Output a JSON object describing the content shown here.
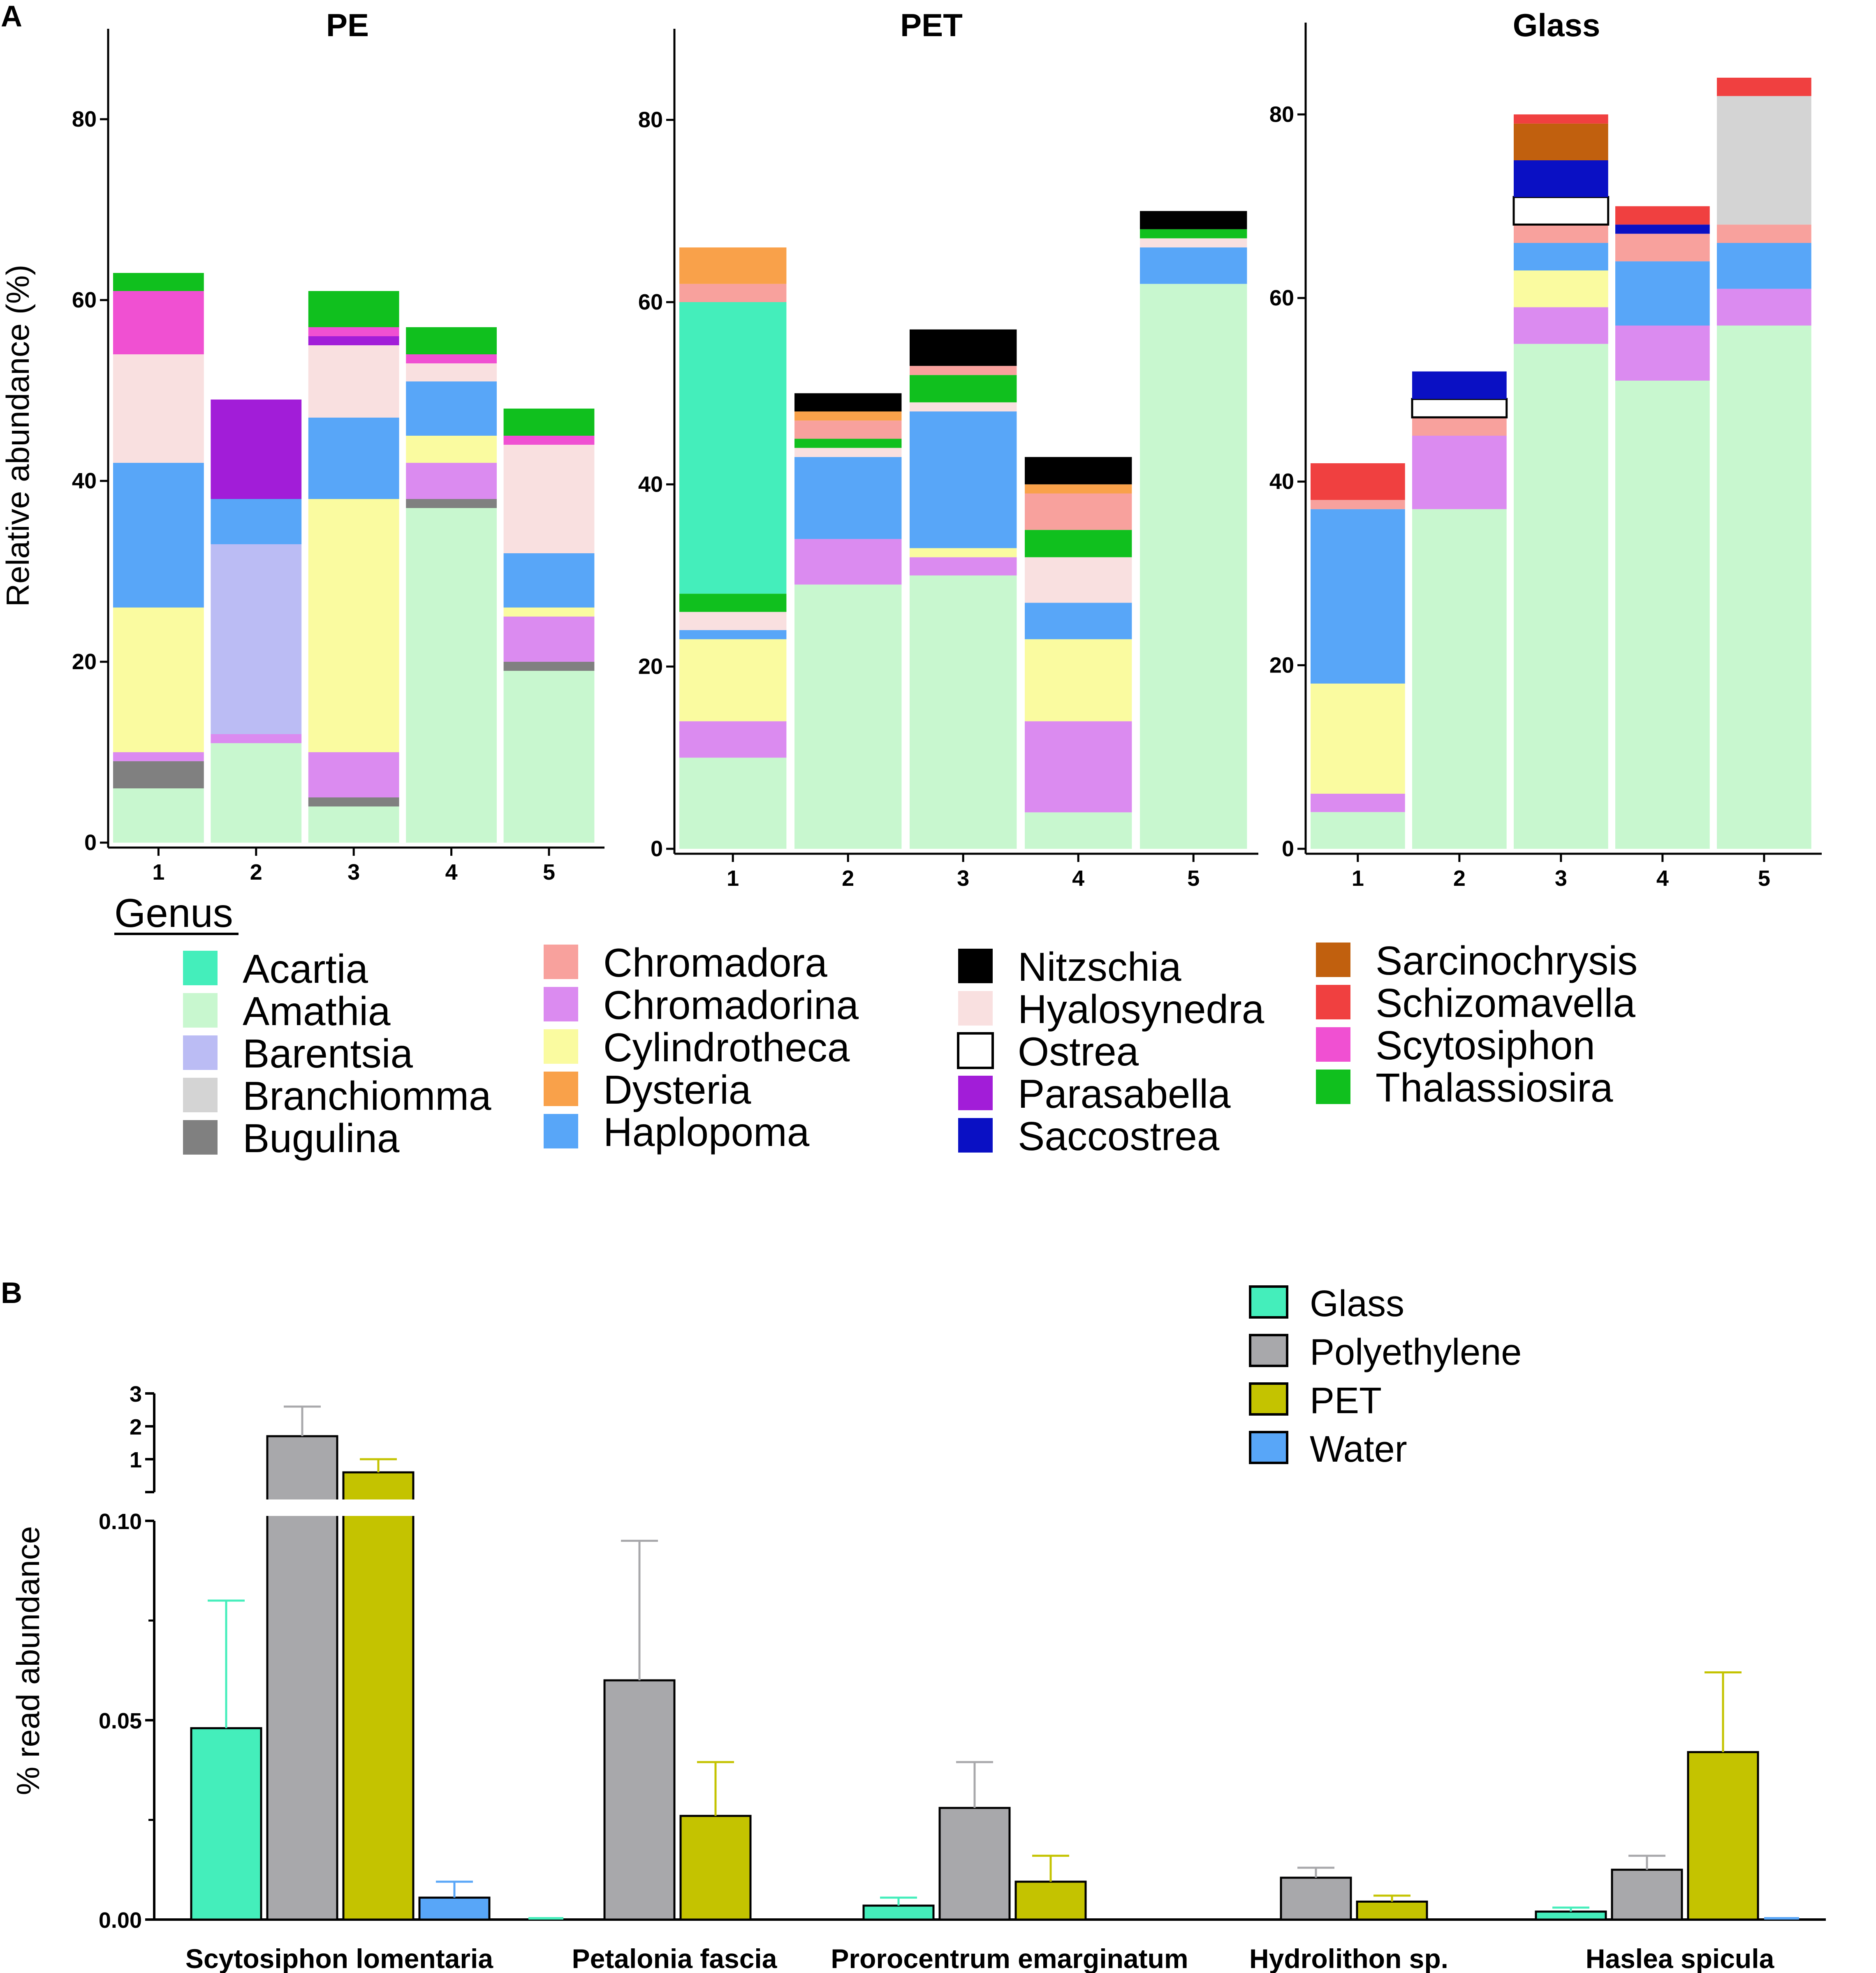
{
  "chart_data": [
    {
      "panel": "A",
      "type": "bar",
      "stacked": true,
      "title": "PE",
      "ylabel": "Relative abundance (%)",
      "ylim": [
        0,
        90
      ],
      "yticks": [
        "0",
        "20",
        "40",
        "60",
        "80"
      ],
      "categories": [
        "1",
        "2",
        "3",
        "4",
        "5"
      ],
      "series": [
        {
          "name": "Amathia",
          "values": [
            6,
            11,
            4,
            37,
            19
          ]
        },
        {
          "name": "Bugulina",
          "values": [
            3,
            0,
            1,
            1,
            1
          ]
        },
        {
          "name": "Chromadorina",
          "values": [
            1,
            1,
            5,
            4,
            5
          ]
        },
        {
          "name": "Cylindrotheca",
          "values": [
            16,
            0,
            28,
            3,
            1
          ]
        },
        {
          "name": "Barentsia",
          "values": [
            0,
            21,
            0,
            0,
            0
          ]
        },
        {
          "name": "Haplopoma",
          "values": [
            16,
            5,
            9,
            6,
            6
          ]
        },
        {
          "name": "Hyalosynedra",
          "values": [
            12,
            0,
            8,
            2,
            12
          ]
        },
        {
          "name": "Parasabella",
          "values": [
            0,
            11,
            1,
            0,
            0
          ]
        },
        {
          "name": "Scytosiphon",
          "values": [
            7,
            0,
            1,
            1,
            1
          ]
        },
        {
          "name": "Thalassiosira",
          "values": [
            2,
            0,
            4,
            3,
            3
          ]
        }
      ]
    },
    {
      "panel": "A",
      "type": "bar",
      "stacked": true,
      "title": "PET",
      "ylabel": "",
      "ylim": [
        0,
        90
      ],
      "yticks": [
        "0",
        "20",
        "40",
        "60",
        "80"
      ],
      "categories": [
        "1",
        "2",
        "3",
        "4",
        "5"
      ],
      "series": [
        {
          "name": "Amathia",
          "values": [
            10,
            29,
            30,
            4,
            62
          ]
        },
        {
          "name": "Chromadorina",
          "values": [
            4,
            5,
            2,
            10,
            0
          ]
        },
        {
          "name": "Cylindrotheca",
          "values": [
            9,
            0,
            1,
            9,
            0
          ]
        },
        {
          "name": "Haplopoma",
          "values": [
            1,
            9,
            15,
            4,
            4
          ]
        },
        {
          "name": "Hyalosynedra",
          "values": [
            2,
            1,
            1,
            5,
            1
          ]
        },
        {
          "name": "Thalassiosira",
          "values": [
            2,
            1,
            3,
            3,
            1
          ]
        },
        {
          "name": "Acartia",
          "values": [
            32,
            0,
            0,
            0,
            0
          ]
        },
        {
          "name": "Chromadora",
          "values": [
            2,
            2,
            1,
            4,
            0
          ]
        },
        {
          "name": "Dysteria",
          "values": [
            4,
            1,
            0,
            1,
            0
          ]
        },
        {
          "name": "Nitzschia",
          "values": [
            0,
            2,
            4,
            3,
            2
          ]
        }
      ]
    },
    {
      "panel": "A",
      "type": "bar",
      "stacked": true,
      "title": "Glass",
      "ylabel": "",
      "ylim": [
        0,
        90
      ],
      "yticks": [
        "0",
        "20",
        "40",
        "60",
        "80"
      ],
      "categories": [
        "1",
        "2",
        "3",
        "4",
        "5"
      ],
      "series": [
        {
          "name": "Amathia",
          "values": [
            4,
            37,
            55,
            51,
            57
          ]
        },
        {
          "name": "Chromadorina",
          "values": [
            2,
            8,
            4,
            6,
            4
          ]
        },
        {
          "name": "Cylindrotheca",
          "values": [
            12,
            0,
            4,
            0,
            0
          ]
        },
        {
          "name": "Haplopoma",
          "values": [
            19,
            0,
            3,
            7,
            5
          ]
        },
        {
          "name": "Chromadora",
          "values": [
            1,
            2,
            2,
            3,
            2
          ]
        },
        {
          "name": "Ostrea",
          "values": [
            0,
            2,
            3,
            0,
            0
          ]
        },
        {
          "name": "Saccostrea",
          "values": [
            0,
            3,
            4,
            1,
            0
          ]
        },
        {
          "name": "Sarcinochrysis",
          "values": [
            0,
            0,
            4,
            0,
            0
          ]
        },
        {
          "name": "Branchiomma",
          "values": [
            0,
            0,
            0,
            0,
            14
          ]
        },
        {
          "name": "Schizomavella",
          "values": [
            4,
            0,
            1,
            2,
            2
          ]
        }
      ]
    },
    {
      "panel": "B",
      "type": "bar",
      "grouped": true,
      "broken_y_axis": true,
      "ylabel": "% read abundance",
      "ylim_lower": [
        0,
        0.1
      ],
      "ylim_upper": [
        0,
        3
      ],
      "yticks_lower": [
        "0.00",
        "0.05",
        "0.10"
      ],
      "yticks_upper": [
        "1",
        "2",
        "3"
      ],
      "categories": [
        "Scytosiphon lomentaria",
        "Petalonia fascia",
        "Prorocentrum emarginatum",
        "Hydrolithon sp.",
        "Haslea spicula"
      ],
      "series": [
        {
          "name": "Glass",
          "values": [
            0.048,
            0.0,
            0.0035,
            0.0,
            0.002
          ],
          "error": [
            0.032,
            0.0,
            0.002,
            0.0,
            0.001
          ]
        },
        {
          "name": "Polyethylene",
          "values": [
            1.7,
            0.06,
            0.028,
            0.0105,
            0.0125
          ],
          "error": [
            0.9,
            0.035,
            0.0115,
            0.0025,
            0.0035
          ]
        },
        {
          "name": "PET",
          "values": [
            0.6,
            0.026,
            0.0095,
            0.0045,
            0.042
          ],
          "error": [
            0.4,
            0.0135,
            0.0065,
            0.0015,
            0.02
          ]
        },
        {
          "name": "Water",
          "values": [
            0.0055,
            0.0,
            0.0,
            0.0,
            0.0
          ],
          "error": [
            0.004,
            0.0,
            0.0,
            0.0,
            0.0
          ]
        }
      ]
    }
  ],
  "labels": {
    "panel_a": "A",
    "panel_b": "B",
    "legend_heading": "Genus"
  },
  "legend_a": [
    {
      "name": "Acartia",
      "color": "#44eebb"
    },
    {
      "name": "Amathia",
      "color": "#c8f7cf"
    },
    {
      "name": "Barentsia",
      "color": "#bbbcf4"
    },
    {
      "name": "Branchiomma",
      "color": "#d4d4d4"
    },
    {
      "name": "Bugulina",
      "color": "#808080"
    },
    {
      "name": "Chromadora",
      "color": "#f8a19d"
    },
    {
      "name": "Chromadorina",
      "color": "#db8bf0"
    },
    {
      "name": "Cylindrotheca",
      "color": "#fafba0"
    },
    {
      "name": "Dysteria",
      "color": "#f9a14a"
    },
    {
      "name": "Haplopoma",
      "color": "#58a6f8"
    },
    {
      "name": "Nitzschia",
      "color": "#000000"
    },
    {
      "name": "Hyalosynedra",
      "color": "#f9e0e0"
    },
    {
      "name": "Ostrea",
      "color": "#ffffff"
    },
    {
      "name": "Parasabella",
      "color": "#a21dd8"
    },
    {
      "name": "Saccostrea",
      "color": "#0a10c4"
    },
    {
      "name": "Sarcinochrysis",
      "color": "#c1600e"
    },
    {
      "name": "Schizomavella",
      "color": "#f04040"
    },
    {
      "name": "Scytosiphon",
      "color": "#f050d2"
    },
    {
      "name": "Thalassiosira",
      "color": "#10c01e"
    }
  ],
  "legend_b": [
    {
      "name": "Glass",
      "color": "#44eebb"
    },
    {
      "name": "Polyethylene",
      "color": "#a8a8ab"
    },
    {
      "name": "PET",
      "color": "#c4c300"
    },
    {
      "name": "Water",
      "color": "#58a6f8"
    }
  ]
}
